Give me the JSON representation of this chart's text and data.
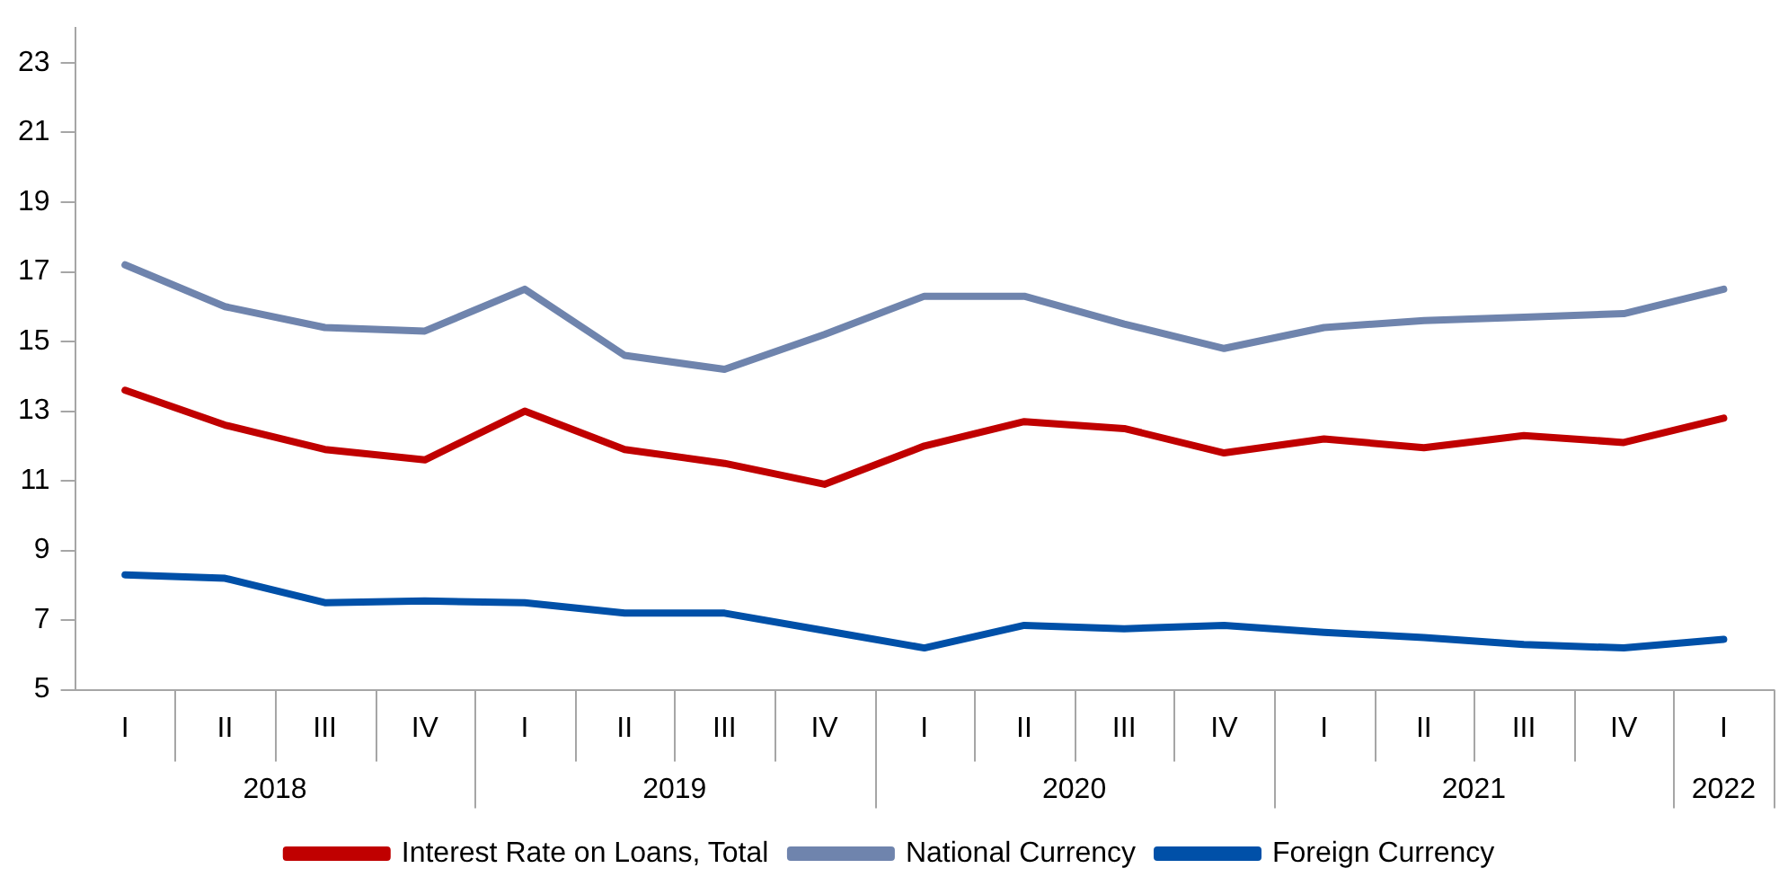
{
  "chart_data": {
    "type": "line",
    "categories": [
      "I",
      "II",
      "III",
      "IV",
      "I",
      "II",
      "III",
      "IV",
      "I",
      "II",
      "III",
      "IV",
      "I",
      "II",
      "III",
      "IV",
      "I"
    ],
    "series": [
      {
        "name": "Interest Rate on Loans, Total",
        "color": "#c00000",
        "values": [
          13.6,
          12.6,
          11.9,
          11.6,
          13.0,
          11.9,
          11.5,
          10.9,
          12.0,
          12.7,
          12.5,
          11.8,
          12.2,
          11.95,
          12.3,
          12.1,
          12.8
        ]
      },
      {
        "name": "National Currency",
        "color": "#6f84ad",
        "values": [
          17.2,
          16.0,
          15.4,
          15.3,
          16.5,
          14.6,
          14.2,
          15.2,
          16.3,
          16.3,
          15.5,
          14.8,
          15.4,
          15.6,
          15.7,
          15.8,
          16.5
        ]
      },
      {
        "name": "Foreign Currency",
        "color": "#0050a8",
        "values": [
          8.3,
          8.2,
          7.5,
          7.55,
          7.5,
          7.2,
          7.2,
          6.7,
          6.2,
          6.85,
          6.75,
          6.85,
          6.65,
          6.5,
          6.3,
          6.2,
          6.45
        ]
      }
    ],
    "annotations": [
      "2018",
      "2019",
      "2020",
      "2021",
      "2022"
    ],
    "ylim": [
      5,
      24
    ],
    "yticks": [
      5,
      7,
      9,
      11,
      13,
      15,
      17,
      19,
      21,
      23
    ],
    "grid": false,
    "legend": "bottom",
    "marker": "none",
    "line_style": "solid"
  }
}
